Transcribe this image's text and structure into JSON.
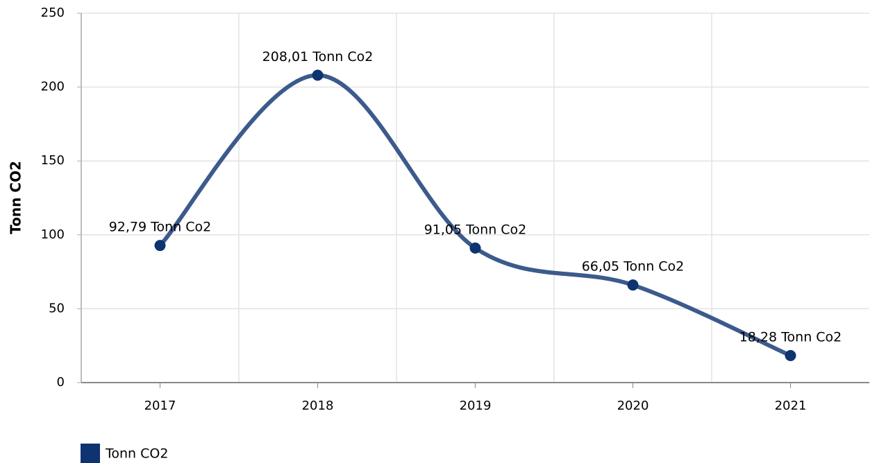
{
  "chart_data": {
    "type": "line",
    "ylabel": "Tonn CO2",
    "categories": [
      "2017",
      "2018",
      "2019",
      "2020",
      "2021"
    ],
    "series": [
      {
        "name": "Tonn CO2",
        "color": "#0d3370",
        "line_color": "#3c5a8c",
        "values": [
          92.79,
          208.01,
          91.05,
          66.05,
          18.28
        ],
        "value_labels": [
          "92,79 Tonn Co2",
          "208,01 Tonn Co2",
          "91,05 Tonn Co2",
          "66,05 Tonn Co2",
          "18,28 Tonn Co2"
        ]
      }
    ],
    "ylim": [
      0,
      250
    ],
    "yticks": [
      0,
      50,
      100,
      150,
      200,
      250
    ],
    "grid": true,
    "smooth": true,
    "legend": "bottom-left"
  }
}
